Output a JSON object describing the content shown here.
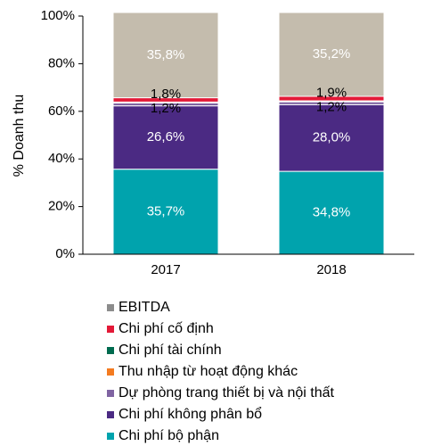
{
  "chart_data": {
    "type": "stacked_bar",
    "y_label": "% Doanh thu",
    "categories": [
      "2017",
      "2018"
    ],
    "series": [
      {
        "name": "Chi phí bộ phận",
        "color": "#00a3ad",
        "values": [
          35.7,
          34.8
        ],
        "value_labels": [
          "35,7%",
          "34,8%"
        ]
      },
      {
        "name": "Chi phí không phân bổ",
        "color": "#4b2a83",
        "values": [
          26.6,
          28.0
        ],
        "value_labels": [
          "26,6%",
          "28,0%"
        ]
      },
      {
        "name": "Dự phòng trang thiết bị và nội thất",
        "color": "#8064a2",
        "values": [
          1.2,
          1.2
        ],
        "value_labels": [
          "1,2%",
          "1,2%"
        ]
      },
      {
        "name": "Thu nhập từ hoạt động khác",
        "color": "#f47b20",
        "values": [
          0.2,
          0.2
        ]
      },
      {
        "name": "Chi phí tài chính",
        "color": "#006b4f",
        "values": [
          0.2,
          0.2
        ]
      },
      {
        "name": "Chi phí cố định",
        "color": "#e31937",
        "values": [
          1.8,
          1.9
        ],
        "value_labels": [
          "1,8%",
          "1,9%"
        ]
      },
      {
        "name": "EBITDA",
        "color": "#c4bcad",
        "values": [
          35.8,
          35.2
        ],
        "value_labels": [
          "35,8%",
          "35,2%"
        ]
      }
    ],
    "ylim": [
      0,
      100
    ],
    "yticks": [
      {
        "value": 0,
        "label": "0%"
      },
      {
        "value": 20,
        "label": "20%"
      },
      {
        "value": 40,
        "label": "40%"
      },
      {
        "value": 60,
        "label": "60%"
      },
      {
        "value": 80,
        "label": "80%"
      },
      {
        "value": 100,
        "label": "100%"
      }
    ]
  }
}
